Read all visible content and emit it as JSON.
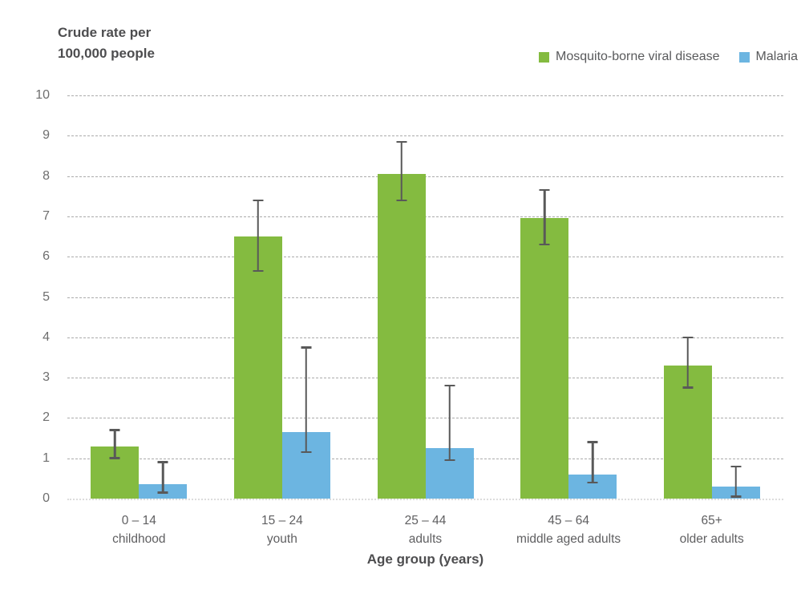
{
  "header": {
    "title": "Crude rate per\n100,000 people"
  },
  "legend": {
    "items": [
      {
        "label": "Mosquito-borne viral disease",
        "color": "#84bb40"
      },
      {
        "label": "Malaria",
        "color": "#6cb5e1"
      }
    ]
  },
  "axis": {
    "x_title": "Age group (years)"
  },
  "chart_data": {
    "type": "bar",
    "title": "Crude rate per 100,000 people",
    "xlabel": "Age group (years)",
    "ylabel": "Crude rate per 100,000 people",
    "ylim": [
      0,
      10
    ],
    "ytick_interval": 1,
    "yticks": [
      0,
      1,
      2,
      3,
      4,
      5,
      6,
      7,
      8,
      9,
      10
    ],
    "grid": true,
    "gridline_color": "#ababab",
    "legend_position": "top-right",
    "error_bar_color": "#595959",
    "categories": [
      {
        "range": "0 – 14",
        "label": "childhood"
      },
      {
        "range": "15 – 24",
        "label": "youth"
      },
      {
        "range": "25 – 44",
        "label": "adults"
      },
      {
        "range": "45 – 64",
        "label": "middle aged adults"
      },
      {
        "range": "65+",
        "label": "older adults"
      }
    ],
    "series": [
      {
        "name": "Mosquito-borne viral disease",
        "color": "#84bb40",
        "values": [
          1.3,
          6.5,
          8.05,
          6.95,
          3.3
        ],
        "error_low": [
          1.0,
          5.65,
          7.4,
          6.3,
          2.75
        ],
        "error_high": [
          1.7,
          7.4,
          8.85,
          7.65,
          4.0
        ]
      },
      {
        "name": "Malaria",
        "color": "#6cb5e1",
        "values": [
          0.35,
          1.65,
          1.25,
          0.6,
          0.3
        ],
        "error_low": [
          0.15,
          1.15,
          0.95,
          0.4,
          0.05
        ],
        "error_high": [
          0.9,
          3.75,
          2.8,
          1.4,
          0.8
        ]
      }
    ]
  }
}
